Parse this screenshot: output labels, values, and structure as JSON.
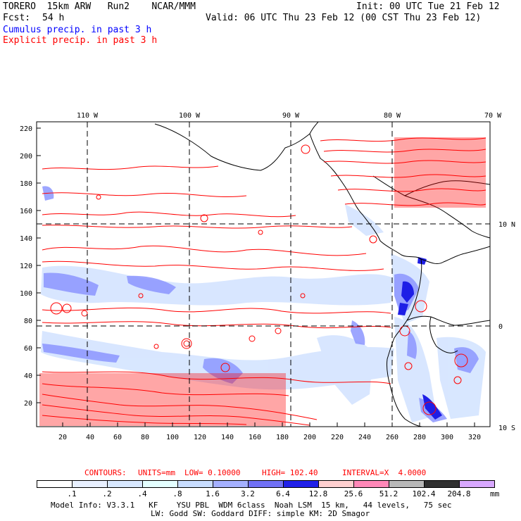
{
  "header": {
    "model": "TORERO  15km ARW   Run2    NCAR/MMM",
    "init": "Init: 00 UTC Tue 21 Feb 12",
    "fcst_label": "Fcst:",
    "fcst_value": "54 h",
    "valid": "Valid: 06 UTC Thu 23 Feb 12 (00 CST Thu 23 Feb 12)",
    "line_cumulus": "Cumulus precip. in past 3 h",
    "line_explicit": "Explicit precip. in past 3 h"
  },
  "map": {
    "top_lon_labels": [
      "110 W",
      "100 W",
      "90 W",
      "80 W",
      "70 W"
    ],
    "right_lat_labels": [
      "10 N",
      "0",
      "10 S"
    ],
    "left_y_labels": [
      "220",
      "200",
      "180",
      "160",
      "140",
      "120",
      "100",
      "80",
      "60",
      "40",
      "20"
    ],
    "bottom_x_labels": [
      "20",
      "40",
      "60",
      "80",
      "100",
      "120",
      "140",
      "160",
      "180",
      "200",
      "220",
      "240",
      "260",
      "280",
      "300",
      "320"
    ]
  },
  "contours": {
    "prefix": "CONTOURS:",
    "units": "UNITS=mm",
    "low": "LOW= 0.10000",
    "high": "HIGH= 102.40",
    "interval": "INTERVAL=X  4.0000"
  },
  "colorbar": {
    "labels": [
      ".1",
      ".2",
      ".4",
      ".8",
      "1.6",
      "3.2",
      "6.4",
      "12.8",
      "25.6",
      "51.2",
      "102.4",
      "204.8"
    ],
    "unit": "mm",
    "colors": [
      "#ffffff",
      "#e8f0ff",
      "#d8e8ff",
      "#e4ffff",
      "#c8ddff",
      "#a4b0ff",
      "#7070f4",
      "#2020e8",
      "#ffd0d0",
      "#ff88b8",
      "#b8b8b8",
      "#303030",
      "#d8a8ff"
    ]
  },
  "footer": {
    "line1": "Model Info: V3.3.1   KF    YSU PBL  WDM 6class  Noah LSM  15 km,   44 levels,   75 sec",
    "line2": "LW: Godd SW: Goddard DIFF: simple KM: 2D Smagor"
  }
}
